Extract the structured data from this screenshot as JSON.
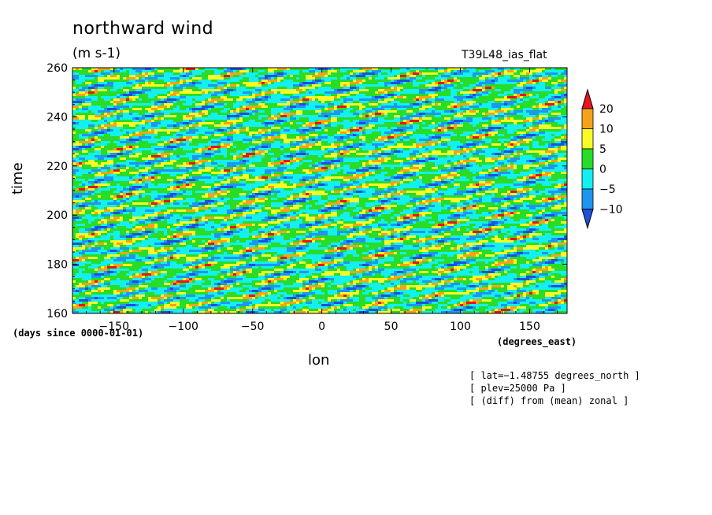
{
  "chart_data": {
    "type": "heatmap",
    "title": "northward wind",
    "subtitle": "(m s-1)",
    "dataset_label": "T39L48_ias_flat",
    "xlabel": "lon",
    "ylabel": "time",
    "x_units": "(degrees_east)",
    "y_units": "(days since 0000-01-01)",
    "xlim": [
      -180,
      177
    ],
    "ylim": [
      160,
      260
    ],
    "x_ticks": [
      -150,
      -100,
      -50,
      0,
      50,
      100,
      150
    ],
    "x_tick_labels": [
      "−150",
      "−100",
      "−50",
      "0",
      "50",
      "100",
      "150"
    ],
    "y_ticks": [
      160,
      180,
      200,
      220,
      240,
      260
    ],
    "colorbar": {
      "levels": [
        20,
        10,
        5,
        0,
        -5,
        -10
      ],
      "level_labels": [
        "20",
        "10",
        "5",
        "0",
        "−5",
        "−10"
      ],
      "colors": [
        "#e8141e",
        "#f5a21b",
        "#fafa28",
        "#28dc28",
        "#14f0f0",
        "#1e96f0",
        "#1e50dc"
      ]
    },
    "annotations": [
      "[ lat=−1.48755 degrees_north ]",
      "[ plev=25000 Pa ]",
      "[ (diff) from (mean) zonal ]"
    ]
  }
}
